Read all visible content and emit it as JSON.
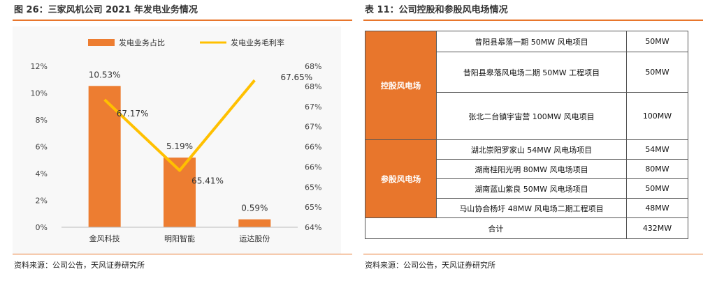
{
  "left": {
    "title": "图 26：三家风机公司 2021 年发电业务情况",
    "source": "资料来源：公司公告，天风证券研究所"
  },
  "right": {
    "title": "表 11：公司控股和参股风电场情况",
    "source": "资料来源：公司公告，天风证券研究所",
    "table": {
      "groups": [
        {
          "label": "控股风电场",
          "rows": [
            {
              "name": "昔阳县皋落一期 50MW 风电项目",
              "capacity": "50MW"
            },
            {
              "name": "昔阳县皋落风电场二期 50MW 工程项目",
              "capacity": "50MW"
            },
            {
              "name": "张北二台镇宇宙营 100MW 风电项目",
              "capacity": "100MW"
            }
          ]
        },
        {
          "label": "参股风电场",
          "rows": [
            {
              "name": "湖北崇阳罗家山 54MW 风电场项目",
              "capacity": "54MW"
            },
            {
              "name": "湖南桂阳光明 80MW 风电场项目",
              "capacity": "80MW"
            },
            {
              "name": "湖南蓝山紫良 50MW 风电场项目",
              "capacity": "50MW"
            },
            {
              "name": "马山协合杨圩 48MW 风电场二期工程项目",
              "capacity": "48MW"
            }
          ]
        }
      ],
      "total_label": "合计",
      "total_value": "432MW"
    }
  },
  "chart_data": {
    "type": "bar",
    "title": "",
    "categories": [
      "金风科技",
      "明阳智能",
      "运达股份"
    ],
    "series": [
      {
        "name": "发电业务占比",
        "type": "bar",
        "axis": "left",
        "values": [
          10.53,
          5.19,
          0.59
        ],
        "labels": [
          "10.53%",
          "5.19%",
          "0.59%"
        ],
        "color": "#ed7d31"
      },
      {
        "name": "发电业务毛利率",
        "type": "line",
        "axis": "right",
        "values": [
          67.17,
          65.41,
          67.65
        ],
        "labels": [
          "67.17%",
          "65.41%",
          "67.65%"
        ],
        "color": "#ffc000"
      }
    ],
    "y_left": {
      "ylim": [
        0,
        12
      ],
      "ticks": [
        0,
        2,
        4,
        6,
        8,
        10,
        12
      ],
      "tick_labels": [
        "0%",
        "2%",
        "4%",
        "6%",
        "8%",
        "10%",
        "12%"
      ]
    },
    "y_right": {
      "ylim": [
        64.0,
        68.0
      ],
      "ticks": [
        64.0,
        64.5,
        65.0,
        65.5,
        66.0,
        66.5,
        67.0,
        67.5,
        68.0
      ],
      "tick_labels": [
        "64%",
        "65%",
        "65%",
        "66%",
        "66%",
        "67%",
        "67%",
        "68%",
        "68%"
      ]
    },
    "legend": "top",
    "grid": false
  }
}
